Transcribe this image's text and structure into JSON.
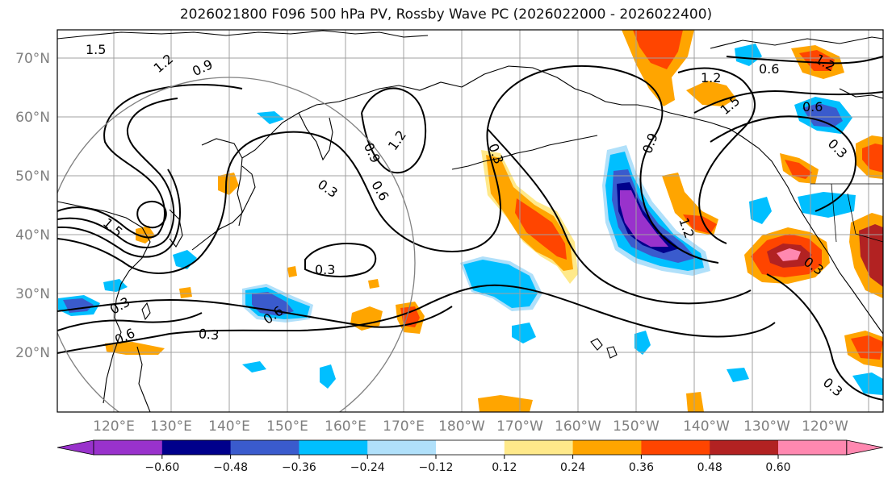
{
  "title": "2026021800 F096 500 hPa PV, Rossby Wave PC (2026022000 - 2026022400)",
  "lat_labels": [
    "70°N",
    "60°N",
    "50°N",
    "40°N",
    "30°N",
    "20°N"
  ],
  "lon_labels": [
    "120°E",
    "130°E",
    "140°E",
    "150°E",
    "160°E",
    "170°E",
    "180°W",
    "170°W",
    "160°W",
    "150°W",
    "140°W",
    "130°W",
    "120°W"
  ],
  "colorbar": {
    "colors": [
      "#9932cc",
      "#00008b",
      "#3a5bcd",
      "#00bfff",
      "#b0e0fa",
      "#ffffff",
      "#ffe98a",
      "#ffa500",
      "#ff4500",
      "#b22222",
      "#ff88b0"
    ],
    "tick_labels": [
      "−0.60",
      "−0.48",
      "−0.36",
      "−0.24",
      "−0.12",
      "0.12",
      "0.24",
      "0.36",
      "0.48",
      "0.60"
    ]
  },
  "contour_labels": [
    "1.5",
    "1.2",
    "0.9",
    "1.2",
    "0.9",
    "0.6",
    "0.3",
    "1.5",
    "0.3",
    "0.6",
    "0.3",
    "0.6",
    "0.3",
    "0.3",
    "0.9",
    "1.2",
    "1.5",
    "0.6",
    "0.6",
    "1.2",
    "0.3",
    "0.3",
    "1.2",
    "0.3"
  ]
}
